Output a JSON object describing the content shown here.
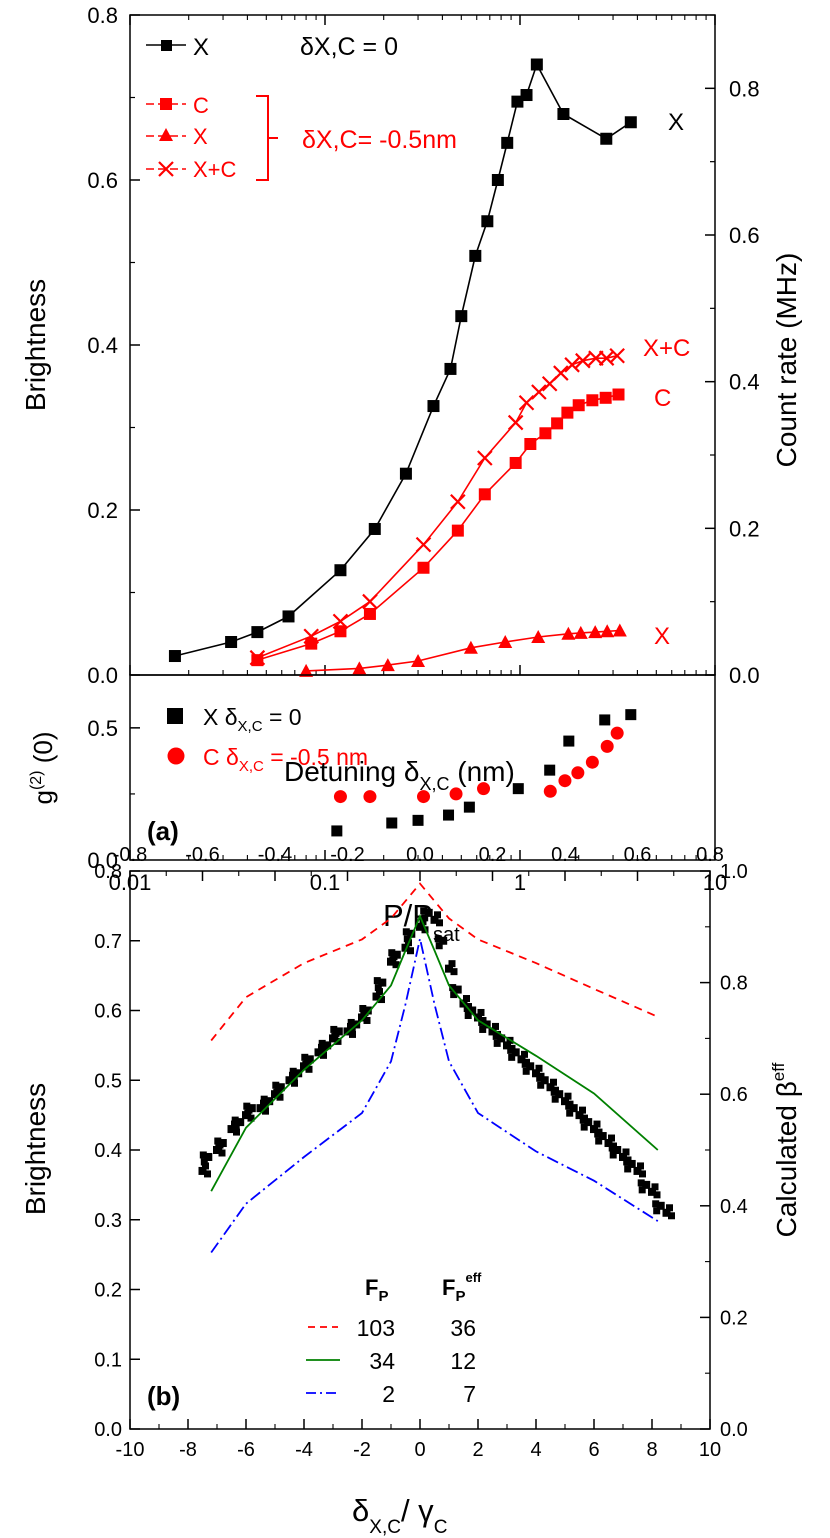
{
  "colors": {
    "black": "#000000",
    "red": "#ff0000",
    "green": "#008000",
    "blue": "#0000ff"
  },
  "chart_data": [
    {
      "panel": "(a) top",
      "type": "line",
      "x_scale": "log",
      "xlim": [
        0.01,
        10
      ],
      "ylim": [
        0,
        0.8
      ],
      "ylabel": "Brightness",
      "y2label": "Count rate (MHz)",
      "y2lim": [
        0,
        0.9
      ],
      "yticks": [
        "0.0",
        "0.2",
        "0.4",
        "0.6",
        "0.8"
      ],
      "y2ticks": [
        "0.0",
        "0.2",
        "0.4",
        "0.6",
        "0.8"
      ],
      "annotations": {
        "delta_zero": "δX,C = 0",
        "delta_neg": "δX,C= -0.5nm",
        "label_x_black": "X",
        "label_xc": "X+C",
        "label_c": "C",
        "label_x_red": "X"
      },
      "legend": [
        {
          "label": "X",
          "color": "#000000",
          "marker": "square"
        },
        {
          "label": "C",
          "color": "#ff0000",
          "marker": "square"
        },
        {
          "label": "X",
          "color": "#ff0000",
          "marker": "triangle"
        },
        {
          "label": "X+C",
          "color": "#ff0000",
          "marker": "cross"
        }
      ],
      "series": [
        {
          "name": "X (δ=0)",
          "color": "#000000",
          "marker": "square",
          "x": [
            0.017,
            0.033,
            0.045,
            0.065,
            0.12,
            0.18,
            0.26,
            0.36,
            0.44,
            0.5,
            0.59,
            0.68,
            0.77,
            0.86,
            0.97,
            1.08,
            1.22,
            1.67,
            2.77,
            3.7
          ],
          "y": [
            0.023,
            0.04,
            0.052,
            0.071,
            0.127,
            0.177,
            0.244,
            0.326,
            0.371,
            0.435,
            0.508,
            0.55,
            0.6,
            0.645,
            0.695,
            0.703,
            0.74,
            0.68,
            0.65,
            0.67
          ]
        },
        {
          "name": "C",
          "color": "#ff0000",
          "marker": "square",
          "x": [
            0.045,
            0.085,
            0.12,
            0.17,
            0.32,
            0.48,
            0.66,
            0.95,
            1.13,
            1.35,
            1.55,
            1.75,
            2.0,
            2.35,
            2.75,
            3.2
          ],
          "y": [
            0.018,
            0.038,
            0.053,
            0.074,
            0.13,
            0.175,
            0.219,
            0.257,
            0.28,
            0.293,
            0.305,
            0.318,
            0.327,
            0.333,
            0.336,
            0.34
          ]
        },
        {
          "name": "X (δ=-0.5nm)",
          "color": "#ff0000",
          "marker": "triangle",
          "x": [
            0.08,
            0.15,
            0.21,
            0.3,
            0.56,
            0.84,
            1.24,
            1.77,
            2.05,
            2.43,
            2.8,
            3.25
          ],
          "y": [
            0.005,
            0.008,
            0.012,
            0.017,
            0.033,
            0.04,
            0.046,
            0.05,
            0.051,
            0.052,
            0.053,
            0.054
          ]
        },
        {
          "name": "X+C",
          "color": "#ff0000",
          "marker": "cross",
          "x": [
            0.045,
            0.085,
            0.12,
            0.17,
            0.32,
            0.48,
            0.66,
            0.95,
            1.08,
            1.25,
            1.42,
            1.62,
            1.85,
            2.1,
            2.45,
            2.78,
            3.15
          ],
          "y": [
            0.021,
            0.047,
            0.065,
            0.089,
            0.158,
            0.21,
            0.263,
            0.306,
            0.33,
            0.343,
            0.353,
            0.366,
            0.376,
            0.381,
            0.384,
            0.384,
            0.387
          ]
        }
      ]
    },
    {
      "panel": "(a) bottom",
      "type": "scatter",
      "x_scale": "log",
      "xlim": [
        0.01,
        10
      ],
      "ylim": [
        0,
        0.7
      ],
      "ylabel": "g(2) (0)",
      "xlabel": "P/Psat",
      "panel_label": "(a)",
      "xticks": [
        "0.01",
        "0.1",
        "1",
        "10"
      ],
      "yticks": [
        "0.0",
        "0.5"
      ],
      "legend": [
        {
          "label": "X δX,C =  0",
          "color": "#000000",
          "marker": "square"
        },
        {
          "label": "C δX,C = -0.5 nm",
          "color": "#ff0000",
          "marker": "circle"
        }
      ],
      "series": [
        {
          "name": "X δX,C = 0",
          "color": "#000000",
          "marker": "square",
          "x": [
            0.115,
            0.22,
            0.3,
            0.43,
            0.55,
            0.98,
            1.42,
            1.78,
            2.72,
            3.7
          ],
          "y": [
            0.11,
            0.14,
            0.15,
            0.17,
            0.2,
            0.27,
            0.34,
            0.45,
            0.53,
            0.55
          ]
        },
        {
          "name": "C δX,C = -0.5 nm",
          "color": "#ff0000",
          "marker": "circle",
          "x": [
            0.12,
            0.17,
            0.32,
            0.47,
            0.65,
            1.43,
            1.7,
            1.98,
            2.35,
            2.8,
            3.15
          ],
          "y": [
            0.24,
            0.24,
            0.24,
            0.25,
            0.27,
            0.26,
            0.3,
            0.33,
            0.37,
            0.43,
            0.48
          ]
        }
      ]
    },
    {
      "panel": "(b)",
      "type": "scatter",
      "xlim": [
        -10,
        10
      ],
      "ylim": [
        0,
        0.8
      ],
      "x2lim": [
        -0.8,
        0.8
      ],
      "y2lim": [
        0,
        1.0
      ],
      "xlabel": "δX,C/ γC",
      "x2label": "Detuning δX,C (nm)",
      "ylabel": "Brightness",
      "y2label": "Calculated βeff",
      "panel_label": "(b)",
      "xticks": [
        "-10",
        "-8",
        "-6",
        "-4",
        "-2",
        "0",
        "2",
        "4",
        "6",
        "8",
        "10"
      ],
      "x2ticks": [
        "-0.8",
        "-0.6",
        "-0.4",
        "-0.2",
        "0.0",
        "0.2",
        "0.4",
        "0.6",
        "0.8"
      ],
      "yticks": [
        "0.0",
        "0.1",
        "0.2",
        "0.3",
        "0.4",
        "0.5",
        "0.6",
        "0.7",
        "0.8"
      ],
      "y2ticks": [
        "0.0",
        "0.2",
        "0.4",
        "0.6",
        "0.8",
        "1.0"
      ],
      "table": {
        "header": [
          "FP",
          "FPeff"
        ],
        "rows": [
          {
            "style": "dashed",
            "color": "#ff0000",
            "fp": "103",
            "fpeff": "36"
          },
          {
            "style": "solid",
            "color": "#008000",
            "fp": "34",
            "fpeff": "12"
          },
          {
            "style": "dashdot",
            "color": "#0000ff",
            "fp": "2",
            "fpeff": "7"
          }
        ]
      },
      "data_points": {
        "x": [
          -7.5,
          -7.3,
          -7.0,
          -6.8,
          -6.5,
          -6.2,
          -6.0,
          -5.8,
          -5.5,
          -5.2,
          -5.0,
          -4.8,
          -4.5,
          -4.2,
          -4.0,
          -3.8,
          -3.5,
          -3.2,
          -3.0,
          -2.8,
          -2.5,
          -2.2,
          -2.0,
          -1.8,
          -1.5,
          -1.3,
          -1.0,
          -0.8,
          -0.5,
          -0.3,
          0.0,
          0.3,
          0.5,
          0.8,
          1.0,
          1.3,
          1.5,
          1.8,
          2.0,
          2.3,
          2.5,
          2.8,
          3.0,
          3.3,
          3.5,
          3.8,
          4.0,
          4.3,
          4.5,
          4.8,
          5.0,
          5.3,
          5.5,
          5.8,
          6.0,
          6.3,
          6.5,
          6.8,
          7.0,
          7.3,
          7.5,
          7.8,
          8.0,
          8.3,
          8.5
        ],
        "y": [
          0.37,
          0.39,
          0.4,
          0.41,
          0.43,
          0.44,
          0.45,
          0.46,
          0.46,
          0.47,
          0.48,
          0.49,
          0.5,
          0.51,
          0.52,
          0.53,
          0.54,
          0.55,
          0.56,
          0.57,
          0.57,
          0.58,
          0.59,
          0.6,
          0.62,
          0.64,
          0.67,
          0.68,
          0.69,
          0.71,
          0.72,
          0.74,
          0.73,
          0.7,
          0.66,
          0.63,
          0.61,
          0.6,
          0.59,
          0.58,
          0.57,
          0.56,
          0.55,
          0.54,
          0.53,
          0.52,
          0.51,
          0.5,
          0.49,
          0.48,
          0.47,
          0.46,
          0.45,
          0.44,
          0.43,
          0.42,
          0.41,
          0.4,
          0.39,
          0.38,
          0.37,
          0.35,
          0.34,
          0.32,
          0.31
        ]
      },
      "curves": [
        {
          "name": "FP=103",
          "color": "#ff0000",
          "style": "dashed",
          "x": [
            -7.2,
            -6,
            -4,
            -2,
            -1,
            0,
            1,
            2,
            4,
            6,
            8.2
          ],
          "y": [
            0.557,
            0.619,
            0.668,
            0.702,
            0.732,
            0.782,
            0.732,
            0.702,
            0.668,
            0.631,
            0.591
          ]
        },
        {
          "name": "FP=34",
          "color": "#008000",
          "style": "solid",
          "x": [
            -7.2,
            -6,
            -4,
            -2,
            -1,
            -0.5,
            0,
            0.5,
            1,
            2,
            4,
            6,
            8.2
          ],
          "y": [
            0.341,
            0.432,
            0.515,
            0.586,
            0.636,
            0.686,
            0.735,
            0.686,
            0.636,
            0.586,
            0.535,
            0.481,
            0.4
          ]
        },
        {
          "name": "FP=2",
          "color": "#0000ff",
          "style": "dashdot",
          "x": [
            -7.2,
            -6,
            -4,
            -2,
            -1,
            -0.5,
            0,
            0.5,
            1,
            2,
            4,
            6,
            8.2
          ],
          "y": [
            0.253,
            0.323,
            0.39,
            0.453,
            0.527,
            0.609,
            0.703,
            0.609,
            0.527,
            0.453,
            0.398,
            0.356,
            0.298
          ]
        }
      ]
    }
  ]
}
